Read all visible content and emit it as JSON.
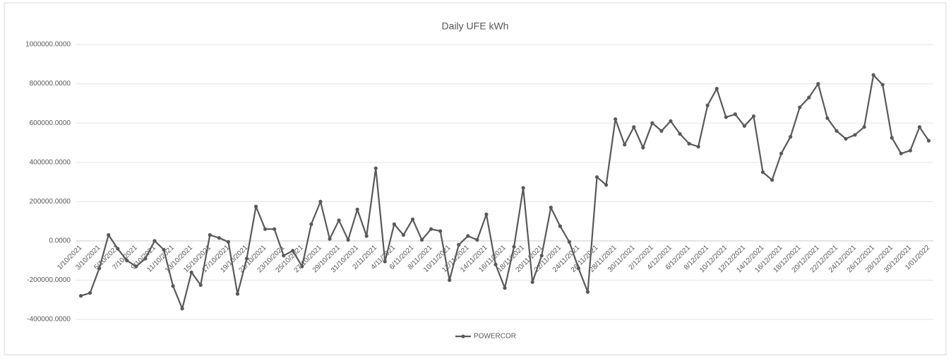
{
  "chart_data": {
    "type": "line",
    "title": "Daily UFE kWh",
    "categories": [
      "1/10/2021",
      null,
      "3/10/2021",
      null,
      "5/10/2021",
      null,
      "7/10/2021",
      null,
      "9/10/2021",
      null,
      "11/10/2021",
      null,
      "13/10/2021",
      null,
      "15/10/2021",
      null,
      "17/10/2021",
      null,
      "19/10/2021",
      null,
      "21/10/2021",
      null,
      "23/10/2021",
      null,
      "25/10/2021",
      null,
      "27/10/2021",
      null,
      "29/10/2021",
      null,
      "31/10/2021",
      null,
      "2/11/2021",
      null,
      "4/11/2021",
      null,
      "6/11/2021",
      null,
      "8/11/2021",
      null,
      "10/11/2021",
      null,
      "12/11/2021",
      null,
      "14/11/2021",
      null,
      "16/11/2021",
      null,
      "18/11/2021",
      null,
      "20/11/2021",
      null,
      "22/11/2021",
      null,
      "24/11/2021",
      null,
      "26/11/2021",
      null,
      "28/11/2021",
      null,
      "30/11/2021",
      null,
      "2/12/2021",
      null,
      "4/12/2021",
      null,
      "6/12/2021",
      null,
      "8/12/2021",
      null,
      "10/12/2021",
      null,
      "12/12/2021",
      null,
      "14/12/2021",
      null,
      "16/12/2021",
      null,
      "18/12/2021",
      null,
      "20/12/2021",
      null,
      "22/12/2021",
      null,
      "24/12/2021",
      null,
      "26/12/2021",
      null,
      "28/12/2021",
      null,
      "30/12/2021",
      null,
      "1/01/2022"
    ],
    "series": [
      {
        "name": "POWERCOR",
        "color": "#595959",
        "values": [
          -280000,
          -265000,
          -140000,
          30000,
          -40000,
          -100000,
          -130000,
          -90000,
          0,
          -45000,
          -230000,
          -345000,
          -160000,
          -225000,
          30000,
          15000,
          -5000,
          -270000,
          -90000,
          175000,
          60000,
          60000,
          -75000,
          -50000,
          -130000,
          85000,
          200000,
          10000,
          105000,
          5000,
          160000,
          25000,
          370000,
          -105000,
          85000,
          30000,
          110000,
          5000,
          60000,
          50000,
          -200000,
          -20000,
          25000,
          5000,
          135000,
          -120000,
          -240000,
          -30000,
          270000,
          -210000,
          -75000,
          170000,
          75000,
          -5000,
          -140000,
          -260000,
          325000,
          285000,
          620000,
          490000,
          580000,
          475000,
          600000,
          560000,
          610000,
          545000,
          495000,
          480000,
          690000,
          775000,
          630000,
          645000,
          585000,
          635000,
          350000,
          310000,
          445000,
          530000,
          680000,
          730000,
          800000,
          625000,
          560000,
          520000,
          540000,
          580000,
          845000,
          795000,
          525000,
          445000,
          460000,
          580000,
          510000
        ]
      }
    ],
    "ylim": [
      -400000,
      1000000
    ],
    "yticks": [
      {
        "value": -400000,
        "label": "-400000.0000"
      },
      {
        "value": -200000,
        "label": "-200000.0000"
      },
      {
        "value": 0,
        "label": "0.0000"
      },
      {
        "value": 200000,
        "label": "200000.0000"
      },
      {
        "value": 400000,
        "label": "400000.0000"
      },
      {
        "value": 600000,
        "label": "600000.0000"
      },
      {
        "value": 800000,
        "label": "800000.0000"
      },
      {
        "value": 1000000,
        "label": "1000000.0000"
      }
    ],
    "grid": true,
    "legend": "bottom"
  }
}
